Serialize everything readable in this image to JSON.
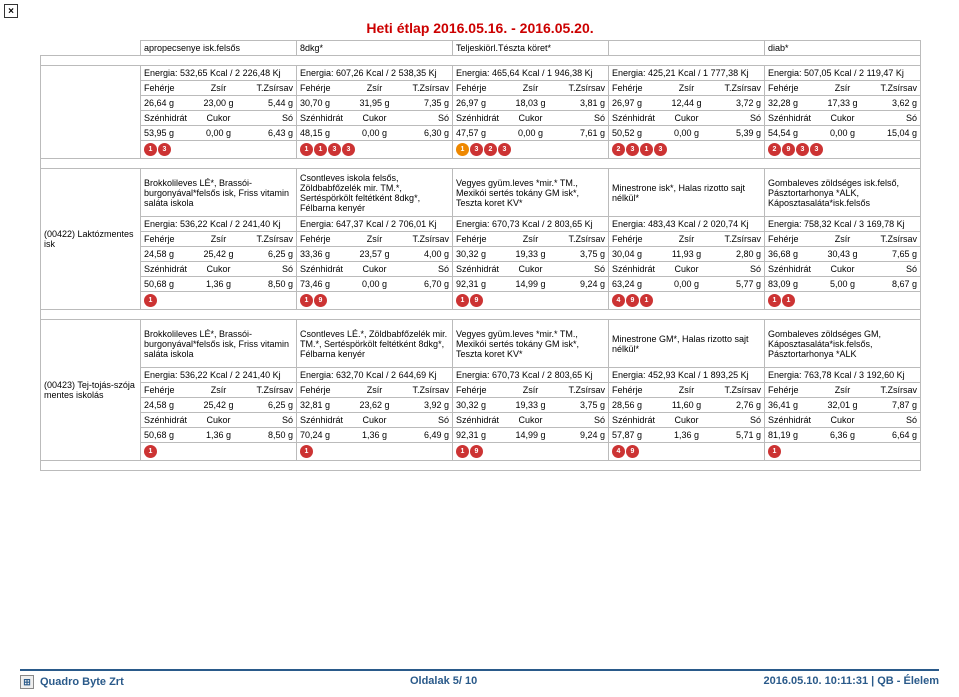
{
  "close_label": "×",
  "title": "Heti étlap 2016.05.16. - 2016.05.20.",
  "header_dishes": [
    "apropecsenye isk.felsős",
    "8dkg*",
    "Teljeskiörl.Tészta köret*",
    "",
    "diab*"
  ],
  "nutr_labels": {
    "p": "Fehérje",
    "z": "Zsír",
    "t": "T.Zsírsav",
    "s": "Szénhidrát",
    "c": "Cukor",
    "o": "Só"
  },
  "section1": {
    "cells": [
      {
        "energy": "Energia: 532,65 Kcal / 2 226,48 Kj",
        "r1": [
          "26,64 g",
          "23,00 g",
          "5,44 g"
        ],
        "r2": [
          "53,95 g",
          "0,00 g",
          "6,43 g"
        ],
        "icons": [
          {
            "t": "1",
            "c": "#c33"
          },
          {
            "t": "3",
            "c": "#c33"
          }
        ]
      },
      {
        "energy": "Energia: 607,26 Kcal / 2 538,35 Kj",
        "r1": [
          "30,70 g",
          "31,95 g",
          "7,35 g"
        ],
        "r2": [
          "48,15 g",
          "0,00 g",
          "6,30 g"
        ],
        "icons": [
          {
            "t": "1",
            "c": "#c33"
          },
          {
            "t": "1",
            "c": "#c33"
          },
          {
            "t": "3",
            "c": "#c33"
          },
          {
            "t": "3",
            "c": "#c33"
          }
        ]
      },
      {
        "energy": "Energia: 465,64 Kcal / 1 946,38 Kj",
        "r1": [
          "26,97 g",
          "18,03 g",
          "3,81 g"
        ],
        "r2": [
          "47,57 g",
          "0,00 g",
          "7,61 g"
        ],
        "icons": [
          {
            "t": "1",
            "c": "#e80"
          },
          {
            "t": "3",
            "c": "#c33"
          },
          {
            "t": "2",
            "c": "#c33"
          },
          {
            "t": "3",
            "c": "#c33"
          }
        ]
      },
      {
        "energy": "Energia: 425,21 Kcal / 1 777,38 Kj",
        "r1": [
          "26,97 g",
          "12,44 g",
          "3,72 g"
        ],
        "r2": [
          "50,52 g",
          "0,00 g",
          "5,39 g"
        ],
        "icons": [
          {
            "t": "2",
            "c": "#c33"
          },
          {
            "t": "3",
            "c": "#c33"
          },
          {
            "t": "1",
            "c": "#c33"
          },
          {
            "t": "3",
            "c": "#c33"
          }
        ]
      },
      {
        "energy": "Energia: 507,05 Kcal / 2 119,47 Kj",
        "r1": [
          "32,28 g",
          "17,33 g",
          "3,62 g"
        ],
        "r2": [
          "54,54 g",
          "0,00 g",
          "15,04 g"
        ],
        "icons": [
          {
            "t": "2",
            "c": "#c33"
          },
          {
            "t": "9",
            "c": "#c33"
          },
          {
            "t": "3",
            "c": "#c33"
          },
          {
            "t": "3",
            "c": "#c33"
          }
        ]
      }
    ]
  },
  "section2": {
    "label": "(00422) Laktózmentes isk",
    "cells": [
      {
        "dish": "Brokkolileves LÉ*, Brassói-burgonyával*felsős isk, Friss vitamin saláta iskola",
        "energy": "Energia: 536,22 Kcal / 2 241,40 Kj",
        "r1": [
          "24,58 g",
          "25,42 g",
          "6,25 g"
        ],
        "r2": [
          "50,68 g",
          "1,36 g",
          "8,50 g"
        ],
        "icons": [
          {
            "t": "1",
            "c": "#c33"
          }
        ]
      },
      {
        "dish": "Csontleves iskola felsős, Zöldbabfőzelék mir. TM.*, Sertéspörkölt feltétként 8dkg*, Félbarna kenyér",
        "energy": "Energia: 647,37 Kcal / 2 706,01 Kj",
        "r1": [
          "33,36 g",
          "23,57 g",
          "4,00 g"
        ],
        "r2": [
          "73,46 g",
          "0,00 g",
          "6,70 g"
        ],
        "icons": [
          {
            "t": "1",
            "c": "#c33"
          },
          {
            "t": "9",
            "c": "#c33"
          }
        ]
      },
      {
        "dish": "Vegyes gyüm.leves *mir.* TM., Mexikói sertés tokány GM isk*, Teszta koret KV*",
        "energy": "Energia: 670,73 Kcal / 2 803,65 Kj",
        "r1": [
          "30,32 g",
          "19,33 g",
          "3,75 g"
        ],
        "r2": [
          "92,31 g",
          "14,99 g",
          "9,24 g"
        ],
        "icons": [
          {
            "t": "1",
            "c": "#c33"
          },
          {
            "t": "9",
            "c": "#c33"
          }
        ]
      },
      {
        "dish": "Minestrone isk*, Halas rizotto sajt nélkül*",
        "energy": "Energia: 483,43 Kcal / 2 020,74 Kj",
        "r1": [
          "30,04 g",
          "11,93 g",
          "2,80 g"
        ],
        "r2": [
          "63,24 g",
          "0,00 g",
          "5,77 g"
        ],
        "icons": [
          {
            "t": "4",
            "c": "#c33"
          },
          {
            "t": "9",
            "c": "#c33"
          },
          {
            "t": "1",
            "c": "#c33"
          }
        ]
      },
      {
        "dish": "Gombaleves zöldséges isk.felső, Pásztortarhonya *ALK, Káposztasaláta*isk.felsős",
        "energy": "Energia: 758,32 Kcal / 3 169,78 Kj",
        "r1": [
          "36,68 g",
          "30,43 g",
          "7,65 g"
        ],
        "r2": [
          "83,09 g",
          "5,00 g",
          "8,67 g"
        ],
        "icons": [
          {
            "t": "1",
            "c": "#c33"
          },
          {
            "t": "1",
            "c": "#c33"
          }
        ]
      }
    ]
  },
  "section3": {
    "label": "(00423) Tej-tojás-szója mentes iskolás",
    "cells": [
      {
        "dish": "Brokkolileves LÉ*, Brassói-burgonyával*felsős isk, Friss vitamin saláta iskola",
        "energy": "Energia: 536,22 Kcal / 2 241,40 Kj",
        "r1": [
          "24,58 g",
          "25,42 g",
          "6,25 g"
        ],
        "r2": [
          "50,68 g",
          "1,36 g",
          "8,50 g"
        ],
        "icons": [
          {
            "t": "1",
            "c": "#c33"
          }
        ]
      },
      {
        "dish": "Csontleves LÉ.*, Zöldbabfőzelék mir. TM.*, Sertéspörkölt feltétként 8dkg*, Félbarna kenyér",
        "energy": "Energia: 632,70 Kcal / 2 644,69 Kj",
        "r1": [
          "32,81 g",
          "23,62 g",
          "3,92 g"
        ],
        "r2": [
          "70,24 g",
          "1,36 g",
          "6,49 g"
        ],
        "icons": [
          {
            "t": "1",
            "c": "#c33"
          }
        ]
      },
      {
        "dish": "Vegyes gyüm.leves *mir.* TM., Mexikói sertés tokány GM isk*, Teszta koret KV*",
        "energy": "Energia: 670,73 Kcal / 2 803,65 Kj",
        "r1": [
          "30,32 g",
          "19,33 g",
          "3,75 g"
        ],
        "r2": [
          "92,31 g",
          "14,99 g",
          "9,24 g"
        ],
        "icons": [
          {
            "t": "1",
            "c": "#c33"
          },
          {
            "t": "9",
            "c": "#c33"
          }
        ]
      },
      {
        "dish": "Minestrone GM*, Halas rizotto sajt nélkül*",
        "energy": "Energia: 452,93 Kcal / 1 893,25 Kj",
        "r1": [
          "28,56 g",
          "11,60 g",
          "2,76 g"
        ],
        "r2": [
          "57,87 g",
          "1,36 g",
          "5,71 g"
        ],
        "icons": [
          {
            "t": "4",
            "c": "#c33"
          },
          {
            "t": "9",
            "c": "#c33"
          }
        ]
      },
      {
        "dish": "Gombaleves zöldséges GM, Káposztasaláta*isk.felsős, Pásztortarhonya *ALK",
        "energy": "Energia: 763,78 Kcal / 3 192,60 Kj",
        "r1": [
          "36,41 g",
          "32,01 g",
          "7,87 g"
        ],
        "r2": [
          "81,19 g",
          "6,36 g",
          "6,64 g"
        ],
        "icons": [
          {
            "t": "1",
            "c": "#c33"
          }
        ]
      }
    ]
  },
  "footer": {
    "company": "Quadro Byte Zrt",
    "center": "Oldalak          5/ 10",
    "right": "2016.05.10. 10:11:31 | QB - Élelem"
  }
}
